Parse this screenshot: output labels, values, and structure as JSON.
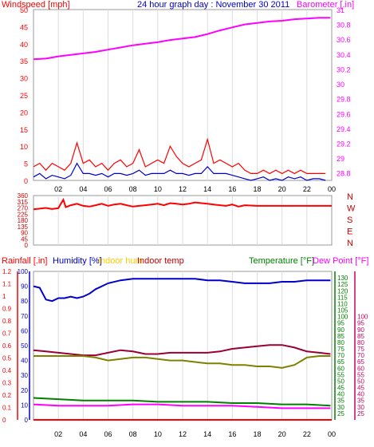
{
  "chart_data": [
    {
      "type": "line",
      "title": "24 hour graph day : November 30 2011",
      "left_axis_label": "Windspeed [mph]",
      "right_axis_label": "Barometer [.in]",
      "left_ticks": [
        "50",
        "45",
        "40",
        "35",
        "30",
        "25",
        "20",
        "15",
        "10",
        "5",
        "0"
      ],
      "right_ticks": [
        "31",
        "30.8",
        "30.6",
        "30.4",
        "30.2",
        "30",
        "29.8",
        "29.6",
        "29.4",
        "29.2",
        "29",
        "28.8"
      ],
      "x_ticks": [
        "02",
        "04",
        "06",
        "08",
        "10",
        "12",
        "14",
        "16",
        "18",
        "20",
        "22",
        "00"
      ],
      "ylim_left": [
        0,
        50
      ],
      "ylim_right": [
        28.7,
        31
      ],
      "colors": {
        "wind_gust": "#ff0000",
        "wind_avg": "#0000cc",
        "barometer": "#ff00ff",
        "title": "#0000cc",
        "wind_label": "#ff0000",
        "baro_label": "#ff00ff"
      },
      "series": [
        {
          "name": "Windspeed",
          "axis": "left",
          "style": "gust",
          "x": [
            0,
            0.5,
            1,
            1.5,
            2,
            2.5,
            3,
            3.5,
            4,
            4.5,
            5,
            5.5,
            6,
            6.5,
            7,
            7.5,
            8,
            8.5,
            9,
            9.5,
            10,
            10.5,
            11,
            11.5,
            12,
            12.5,
            13,
            13.5,
            14,
            14.5,
            15,
            15.5,
            16,
            16.5,
            17,
            17.5,
            18,
            18.5,
            19,
            19.5,
            20,
            20.5,
            21,
            21.5,
            22,
            22.5,
            23,
            23.5
          ],
          "y": [
            4,
            5,
            3,
            5,
            4,
            3,
            5,
            11,
            5,
            6,
            4,
            5,
            3,
            5,
            6,
            4,
            5,
            9,
            4,
            5,
            6,
            5,
            10,
            7,
            5,
            4,
            5,
            6,
            12,
            5,
            6,
            5,
            4,
            5,
            3,
            2,
            2,
            3,
            2,
            3,
            2,
            3,
            2,
            3,
            2,
            2,
            2,
            2
          ]
        },
        {
          "name": "Windspeed avg",
          "axis": "left",
          "style": "avg",
          "x": [
            0,
            0.5,
            1,
            1.5,
            2,
            2.5,
            3,
            3.5,
            4,
            4.5,
            5,
            5.5,
            6,
            6.5,
            7,
            7.5,
            8,
            8.5,
            9,
            9.5,
            10,
            10.5,
            11,
            11.5,
            12,
            12.5,
            13,
            13.5,
            14,
            14.5,
            15,
            15.5,
            16,
            16.5,
            17,
            17.5,
            18,
            18.5,
            19,
            19.5,
            20,
            20.5,
            21,
            21.5,
            22,
            22.5,
            23,
            23.5
          ],
          "y": [
            1,
            2,
            0.5,
            1.5,
            1,
            0.5,
            1.5,
            5,
            2,
            2,
            1.5,
            2,
            1,
            2,
            2,
            1.5,
            2,
            3,
            1.5,
            2,
            2,
            2,
            3,
            2,
            2,
            1.5,
            2,
            2,
            4,
            2,
            2,
            2,
            1.5,
            1,
            0.5,
            0,
            0.5,
            1,
            0,
            0.5,
            0,
            1,
            0.5,
            1,
            0,
            0.5,
            0.5,
            0
          ]
        },
        {
          "name": "Barometer",
          "axis": "right",
          "x": [
            0,
            1,
            2,
            3,
            4,
            5,
            6,
            7,
            8,
            9,
            10,
            11,
            12,
            13,
            14,
            15,
            16,
            17,
            18,
            19,
            20,
            21,
            22,
            23,
            23.9
          ],
          "y": [
            30.33,
            30.34,
            30.37,
            30.39,
            30.41,
            30.43,
            30.46,
            30.49,
            30.52,
            30.54,
            30.56,
            30.59,
            30.61,
            30.63,
            30.67,
            30.72,
            30.76,
            30.8,
            30.82,
            30.84,
            30.85,
            30.87,
            30.88,
            30.89,
            30.89
          ]
        }
      ]
    },
    {
      "type": "line",
      "left_ticks": [
        "360",
        "315",
        "270",
        "225",
        "180",
        "135",
        "90",
        "45",
        "0"
      ],
      "right_labels": [
        "N",
        "W",
        "S",
        "E",
        "N"
      ],
      "ylim": [
        0,
        360
      ],
      "colors": {
        "direction": "#ff0000",
        "labels": "#cc0000"
      },
      "series": [
        {
          "name": "Wind direction",
          "x": [
            0,
            0.5,
            1,
            1.5,
            2,
            2.2,
            2.4,
            2.6,
            3,
            3.5,
            4,
            4.5,
            5,
            5.5,
            6,
            6.5,
            7,
            7.5,
            8,
            8.5,
            9,
            9.5,
            10,
            10.5,
            11,
            11.5,
            12,
            12.5,
            13,
            13.5,
            14,
            14.5,
            15,
            15.5,
            16,
            16.5,
            17,
            18,
            20,
            22,
            24
          ],
          "y": [
            260,
            265,
            270,
            262,
            268,
            300,
            330,
            275,
            290,
            300,
            285,
            280,
            290,
            300,
            285,
            295,
            300,
            290,
            280,
            285,
            290,
            295,
            300,
            290,
            305,
            300,
            295,
            300,
            310,
            305,
            300,
            295,
            290,
            285,
            295,
            280,
            290,
            285,
            285,
            285,
            285
          ]
        }
      ]
    },
    {
      "type": "line",
      "labels": {
        "rain": "Rainfall [.in]",
        "humidity": "Humidity [%]",
        "indoor_hum": "Indoor hum",
        "indoor_temp": "Indoor temp",
        "temperature": "Temperature [°F]",
        "dewpoint": "Dew Point [°F]"
      },
      "ticks_rain": [
        "1.2",
        "1.1",
        "1",
        "0.9",
        "0.8",
        "0.7",
        "0.6",
        "0.5",
        "0.4",
        "0.3",
        "0.2",
        "0.1",
        "0"
      ],
      "ticks_humidity": [
        "100",
        "90",
        "80",
        "70",
        "60",
        "50",
        "40",
        "30",
        "20",
        "10",
        "0"
      ],
      "ticks_temp": [
        "130",
        "125",
        "120",
        "115",
        "110",
        "105",
        "100",
        "95",
        "90",
        "85",
        "80",
        "75",
        "70",
        "65",
        "60",
        "55",
        "50",
        "45",
        "40",
        "35",
        "30",
        "25"
      ],
      "ticks_dew": [
        "100",
        "95",
        "90",
        "85",
        "80",
        "75",
        "70",
        "65",
        "60",
        "55",
        "50",
        "45",
        "40",
        "35",
        "30",
        "25"
      ],
      "x_ticks": [
        "02",
        "04",
        "06",
        "08",
        "10",
        "12",
        "14",
        "16",
        "18",
        "20",
        "22",
        "00"
      ],
      "ylim_temp": [
        20,
        135
      ],
      "ylim_humidity": [
        0,
        100
      ],
      "colors": {
        "rain": "#ff0000",
        "humidity": "#0000cc",
        "indoor_hum": "#ffcc00",
        "indoor_temp": "#cc0000",
        "temperature": "#008000",
        "dewpoint": "#ff00ff",
        "outdoor_temp_line": "#990033",
        "indoor_hum_line": "#808000",
        "rain_axis": "#ff0000",
        "hum_axis": "#0000cc",
        "temp_axis": "#008000",
        "dew_axis": "#cc0066"
      },
      "series": [
        {
          "name": "Humidity",
          "axis": "humidity",
          "x": [
            0,
            0.5,
            1,
            1.5,
            2,
            2.5,
            3,
            3.5,
            4,
            4.5,
            5,
            5.5,
            6,
            7,
            8,
            9,
            10,
            11,
            12,
            13,
            14,
            15,
            16,
            17,
            18,
            19,
            20,
            21,
            22,
            23,
            23.9
          ],
          "y": [
            90,
            89,
            81,
            80,
            82,
            82,
            83,
            82,
            83,
            85,
            88,
            90,
            92,
            94,
            95,
            95,
            95,
            95,
            95,
            95,
            94,
            94,
            93,
            92,
            92,
            92,
            93,
            93,
            94,
            94,
            94
          ]
        },
        {
          "name": "Temperature",
          "axis": "temp",
          "x": [
            0,
            2,
            4,
            6,
            8,
            10,
            12,
            14,
            16,
            18,
            20,
            22,
            23.9
          ],
          "y": [
            37,
            36,
            35,
            35,
            35,
            34,
            34,
            34,
            33,
            33,
            32,
            32,
            31
          ]
        },
        {
          "name": "Dew Point",
          "axis": "temp",
          "x": [
            0,
            2,
            4,
            6,
            8,
            10,
            12,
            14,
            16,
            18,
            20,
            22,
            23.9
          ],
          "y": [
            32,
            31,
            31,
            31,
            32,
            32,
            31,
            31,
            31,
            30,
            29,
            29,
            29
          ]
        },
        {
          "name": "Indoor temp",
          "axis": "temp",
          "x": [
            0,
            1,
            2,
            3,
            4,
            5,
            6,
            7,
            8,
            9,
            10,
            11,
            12,
            13,
            14,
            15,
            16,
            17,
            18,
            19,
            20,
            21,
            22,
            23,
            23.9
          ],
          "y": [
            74,
            73,
            72,
            71,
            70,
            70,
            72,
            74,
            73,
            71,
            71,
            72,
            72,
            72,
            72,
            73,
            75,
            76,
            77,
            78,
            78,
            76,
            73,
            72,
            71
          ]
        },
        {
          "name": "Indoor hum",
          "axis": "humidity",
          "x": [
            0,
            1,
            2,
            3,
            4,
            5,
            6,
            7,
            8,
            9,
            10,
            11,
            12,
            13,
            14,
            15,
            16,
            17,
            18,
            19,
            20,
            21,
            22,
            23,
            23.9
          ],
          "y": [
            43,
            43,
            43,
            43,
            43,
            42,
            40,
            41,
            42,
            42,
            41,
            40,
            40,
            39,
            38,
            38,
            37,
            37,
            36,
            36,
            35,
            37,
            42,
            43,
            43
          ]
        },
        {
          "name": "Rainfall",
          "axis": "rain",
          "x": [
            0,
            24
          ],
          "y": [
            0,
            0
          ]
        }
      ]
    }
  ]
}
